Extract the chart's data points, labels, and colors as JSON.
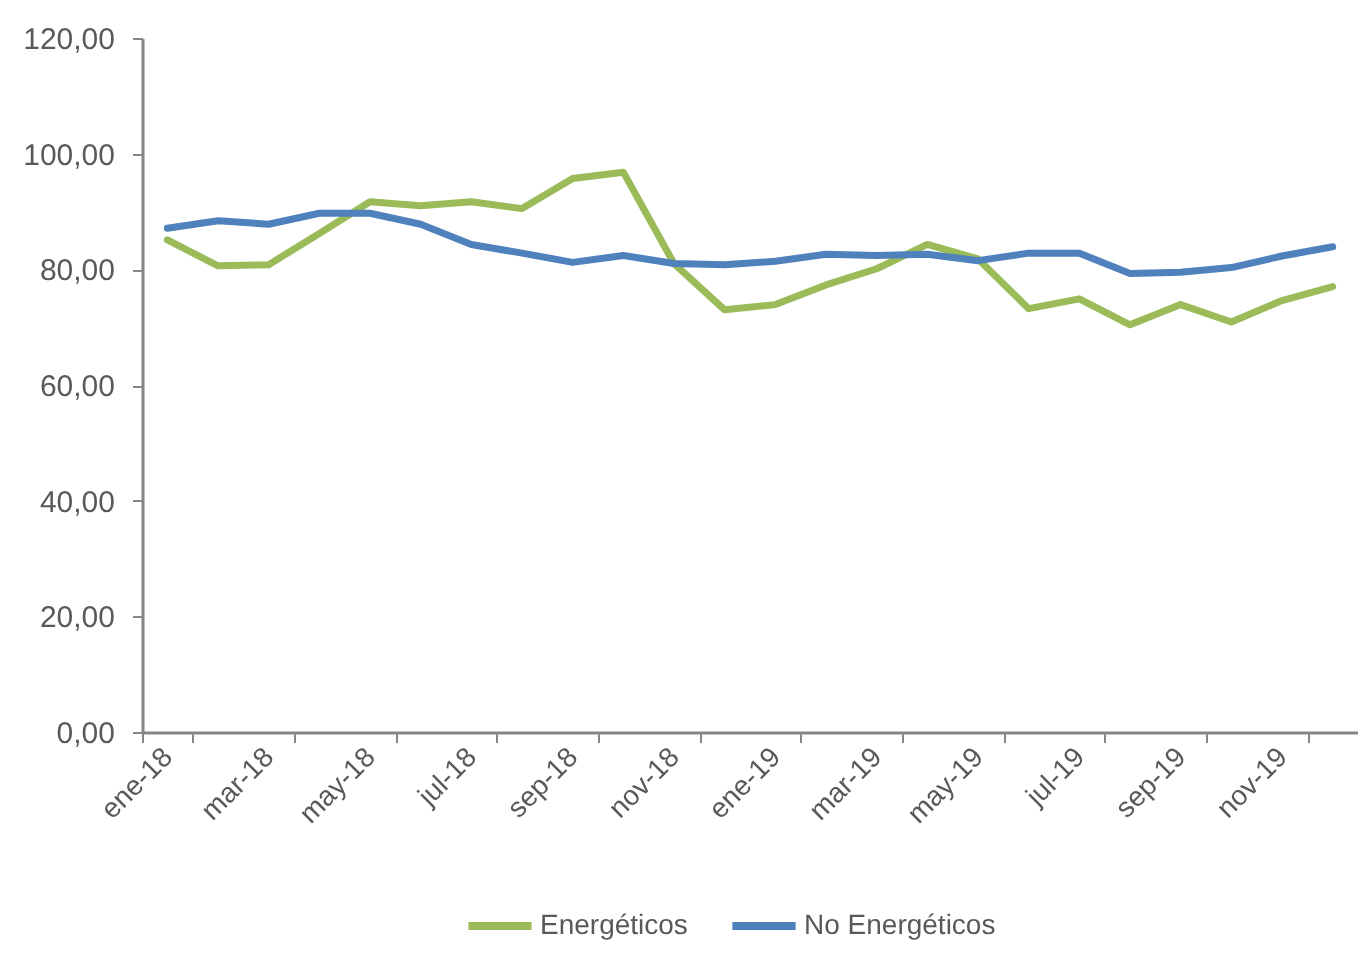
{
  "chart_data": {
    "type": "line",
    "categories": [
      "ene-18",
      null,
      "mar-18",
      null,
      "may-18",
      null,
      "jul-18",
      null,
      "sep-18",
      null,
      "nov-18",
      null,
      "ene-19",
      null,
      "mar-19",
      null,
      "may-19",
      null,
      "jul-19",
      null,
      "sep-19",
      null,
      "nov-19",
      null
    ],
    "series": [
      {
        "name": "Energéticos",
        "color": "#9bbb59",
        "line_style": "solid",
        "values": [
          85.1,
          80.6,
          80.8,
          86.2,
          91.7,
          91.0,
          91.7,
          90.5,
          95.7,
          96.8,
          81.0,
          73.0,
          73.9,
          77.3,
          80.1,
          84.3,
          81.8,
          73.2,
          74.9,
          70.4,
          73.9,
          70.9,
          74.6,
          77.0
        ]
      },
      {
        "name": "No Energéticos",
        "color": "#4f81bd",
        "line_style": "solid",
        "values": [
          87.1,
          88.4,
          87.8,
          89.7,
          89.7,
          87.8,
          84.3,
          82.8,
          81.2,
          82.4,
          81.0,
          80.8,
          81.4,
          82.6,
          82.4,
          82.6,
          81.5,
          82.8,
          82.8,
          79.3,
          79.5,
          80.3,
          82.3,
          83.9
        ]
      }
    ],
    "ylim": [
      0,
      120
    ],
    "yticks": [
      {
        "value": 0,
        "label": "0,00"
      },
      {
        "value": 20,
        "label": "20,00"
      },
      {
        "value": 40,
        "label": "40,00"
      },
      {
        "value": 60,
        "label": "60,00"
      },
      {
        "value": 80,
        "label": "80,00"
      },
      {
        "value": 100,
        "label": "100,00"
      },
      {
        "value": 120,
        "label": "120,00"
      }
    ],
    "grid": false,
    "legend": "bottom"
  }
}
